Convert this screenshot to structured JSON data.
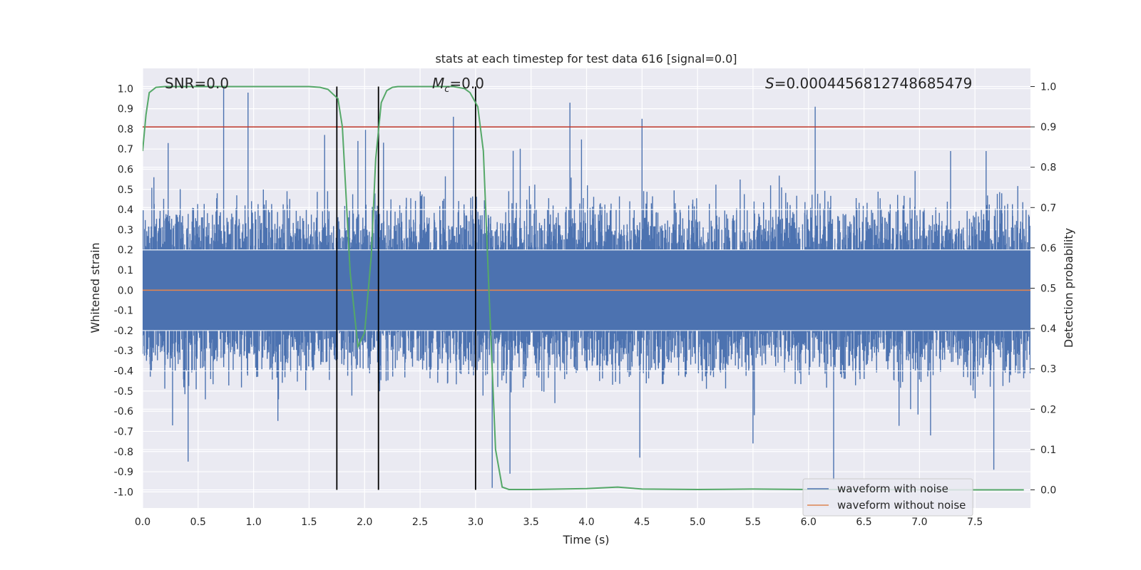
{
  "chart_data": {
    "type": "line",
    "title": "stats at each timestep for test data 616 [signal=0.0]",
    "xlabel": "Time (s)",
    "ylabel_left": "Whitened strain",
    "ylabel_right": "Detection probability",
    "xlim": [
      0.0,
      8.0
    ],
    "ylim_left": [
      -1.08,
      1.1
    ],
    "ylim_right": [
      -0.045,
      1.045
    ],
    "xticks": [
      "0.0",
      "0.5",
      "1.0",
      "1.5",
      "2.0",
      "2.5",
      "3.0",
      "3.5",
      "4.0",
      "4.5",
      "5.0",
      "5.5",
      "6.0",
      "6.5",
      "7.0",
      "7.5"
    ],
    "yticks_left": [
      "-1.0",
      "-0.9",
      "-0.8",
      "-0.7",
      "-0.6",
      "-0.5",
      "-0.4",
      "-0.3",
      "-0.2",
      "-0.1",
      "0.0",
      "0.1",
      "0.2",
      "0.3",
      "0.4",
      "0.5",
      "0.6",
      "0.7",
      "0.8",
      "0.9",
      "1.0"
    ],
    "yticks_right": [
      "0.0",
      "0.1",
      "0.2",
      "0.3",
      "0.4",
      "0.5",
      "0.6",
      "0.7",
      "0.8",
      "0.9",
      "1.0"
    ],
    "grid": true,
    "annotations": {
      "snr": "SNR=0.0",
      "mc_symbol": "M",
      "mc_sub": "c",
      "mc_value": "=0.0",
      "s_symbol": "S",
      "s_value": "=0.0004456812748685479"
    },
    "legend": {
      "placement": "lower-right",
      "entries": [
        "waveform with noise",
        "waveform without noise"
      ]
    },
    "threshold_line": {
      "axis": "right",
      "y": 0.9,
      "color": "#c0392b"
    },
    "vertical_lines": [
      1.75,
      2.125,
      3.0
    ],
    "series": [
      {
        "name": "waveform with noise",
        "axis": "left",
        "color": "#4c72b0",
        "description": "whitened strain noise, dense band roughly within ±0.2 with spikes",
        "spikes": [
          {
            "x": 0.73,
            "y": 1.0
          },
          {
            "x": 0.95,
            "y": 0.98
          },
          {
            "x": 0.23,
            "y": 0.73
          },
          {
            "x": 1.64,
            "y": 0.77
          },
          {
            "x": 1.94,
            "y": 0.74
          },
          {
            "x": 2.8,
            "y": 0.86
          },
          {
            "x": 3.85,
            "y": 0.93
          },
          {
            "x": 4.5,
            "y": 0.85
          },
          {
            "x": 6.06,
            "y": 0.91
          },
          {
            "x": 7.28,
            "y": 0.69
          },
          {
            "x": 7.6,
            "y": 0.69
          },
          {
            "x": 0.41,
            "y": -0.85
          },
          {
            "x": 1.75,
            "y": -0.72
          },
          {
            "x": 3.31,
            "y": -0.91
          },
          {
            "x": 4.48,
            "y": -0.83
          },
          {
            "x": 7.67,
            "y": -0.89
          },
          {
            "x": 5.5,
            "y": -0.76
          },
          {
            "x": 7.1,
            "y": -0.72
          },
          {
            "x": 3.15,
            "y": -0.98
          },
          {
            "x": 0.27,
            "y": -0.67
          }
        ]
      },
      {
        "name": "waveform without noise",
        "axis": "left",
        "color": "#dd8452",
        "x": [
          0.0,
          8.0
        ],
        "y": [
          0.0,
          0.0
        ]
      },
      {
        "name": "detection probability",
        "axis": "right",
        "color": "#55a868",
        "x": [
          0.0,
          0.03,
          0.06,
          0.12,
          0.2,
          0.5,
          1.0,
          1.5,
          1.6,
          1.67,
          1.72,
          1.76,
          1.8,
          1.87,
          1.94,
          2.0,
          2.06,
          2.1,
          2.15,
          2.2,
          2.25,
          2.3,
          2.5,
          2.8,
          2.9,
          2.95,
          3.02,
          3.07,
          3.12,
          3.18,
          3.24,
          3.3,
          3.5,
          4.0,
          4.28,
          4.5,
          5.0,
          5.5,
          6.0,
          6.5,
          7.0,
          7.5,
          7.94
        ],
        "y": [
          0.84,
          0.93,
          0.985,
          0.998,
          1.0,
          1.0,
          1.0,
          1.0,
          0.998,
          0.993,
          0.98,
          0.97,
          0.9,
          0.54,
          0.355,
          0.39,
          0.58,
          0.82,
          0.96,
          0.99,
          0.998,
          1.0,
          1.0,
          1.0,
          0.995,
          0.985,
          0.95,
          0.84,
          0.5,
          0.1,
          0.007,
          0.001,
          0.001,
          0.003,
          0.007,
          0.002,
          0.001,
          0.002,
          0.001,
          0.001,
          0.0,
          0.0,
          0.0
        ]
      }
    ]
  }
}
